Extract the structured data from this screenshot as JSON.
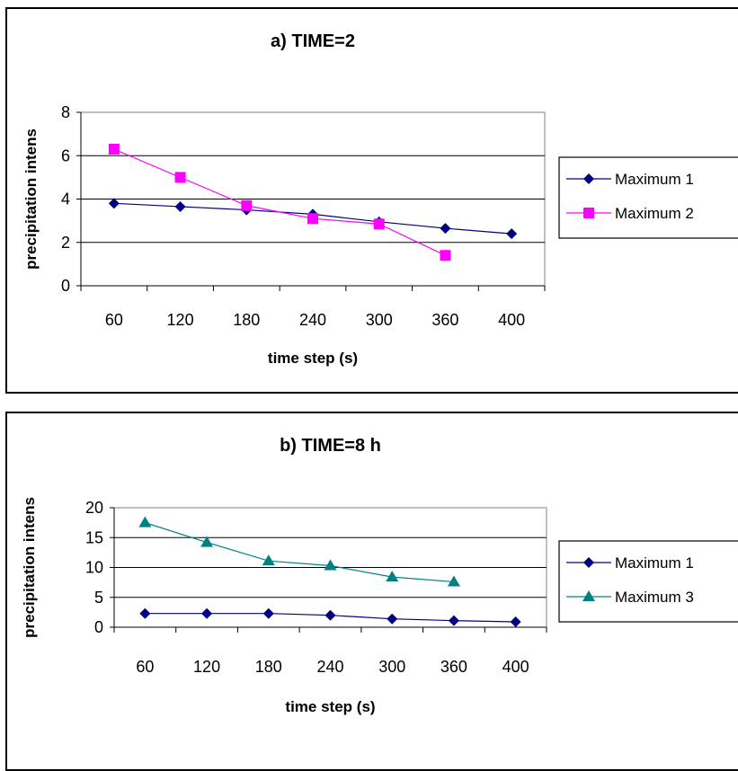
{
  "chart_data": [
    {
      "type": "line",
      "title": "a)  TIME=2",
      "xlabel": "time step (s)",
      "ylabel": "precipitation intens",
      "categories": [
        "60",
        "120",
        "180",
        "240",
        "300",
        "360",
        "400"
      ],
      "ylim": [
        0,
        8
      ],
      "yticks": [
        0,
        2,
        4,
        6,
        8
      ],
      "grid": true,
      "legend": "right",
      "series": [
        {
          "name": "Maximum 1",
          "color": "#000080",
          "marker": "diamond",
          "values": [
            3.8,
            3.65,
            3.5,
            3.3,
            2.95,
            2.65,
            2.4
          ]
        },
        {
          "name": "Maximum 2",
          "color": "#ff00ff",
          "marker": "square",
          "values": [
            6.3,
            5.0,
            3.7,
            3.1,
            2.85,
            1.4,
            null
          ]
        }
      ]
    },
    {
      "type": "line",
      "title": "b)  TIME=8 h",
      "xlabel": "time step (s)",
      "ylabel": "precipitation intens",
      "categories": [
        "60",
        "120",
        "180",
        "240",
        "300",
        "360",
        "400"
      ],
      "ylim": [
        0,
        20
      ],
      "yticks": [
        0,
        5,
        10,
        15,
        20
      ],
      "grid": true,
      "legend": "right",
      "series": [
        {
          "name": "Maximum 1",
          "color": "#000080",
          "marker": "diamond",
          "values": [
            2.3,
            2.3,
            2.3,
            2.0,
            1.4,
            1.1,
            0.9
          ]
        },
        {
          "name": "Maximum 3",
          "color": "#008080",
          "marker": "triangle",
          "values": [
            17.5,
            14.2,
            11.1,
            10.3,
            8.4,
            7.6,
            null
          ]
        }
      ]
    }
  ]
}
